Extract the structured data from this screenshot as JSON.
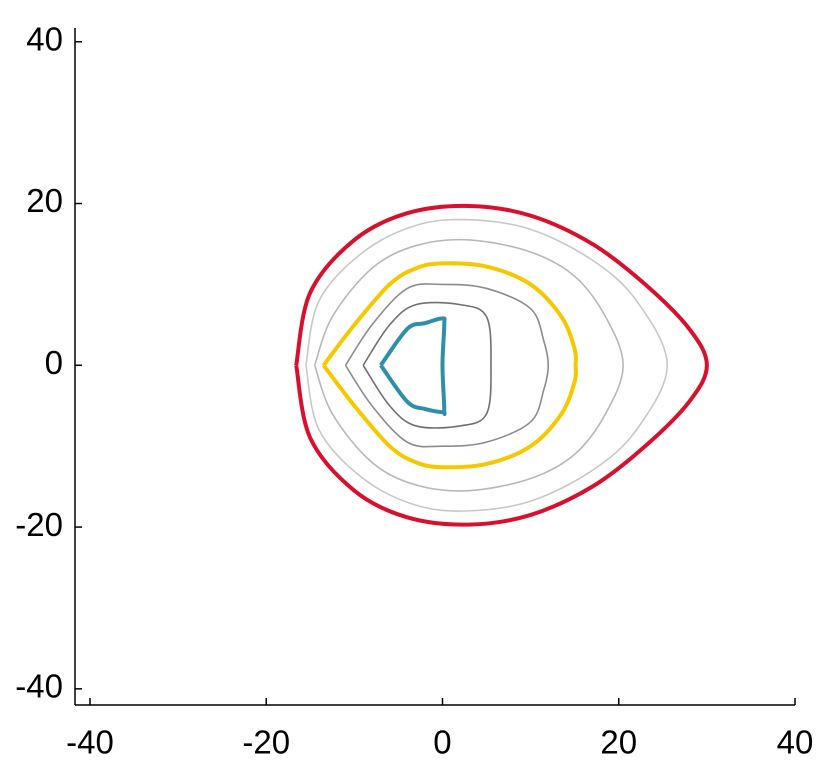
{
  "chart_data": {
    "type": "contour",
    "xlim": [
      -41.7,
      40
    ],
    "ylim": [
      -42,
      41.7
    ],
    "xticks": [
      -40,
      -20,
      0,
      20,
      40
    ],
    "yticks": [
      -40,
      -20,
      0,
      20,
      40
    ],
    "series": [
      {
        "color": "#c8c8c8",
        "width": 1.6,
        "x": [
          -15.5,
          -14,
          -9,
          -3,
          3,
          10,
          17,
          22,
          25.5,
          22,
          17,
          10,
          3,
          -3,
          -9,
          -14,
          -15.5
        ],
        "y": [
          0,
          8,
          14,
          17.3,
          18,
          16.8,
          13,
          8,
          0,
          -8,
          -13,
          -16.8,
          -18,
          -17.3,
          -14,
          -8,
          0
        ]
      },
      {
        "color": "#b8b8b8",
        "width": 1.6,
        "x": [
          -14.5,
          -12.5,
          -8,
          -3,
          3,
          10,
          15,
          18.5,
          20.5,
          18.5,
          15,
          10,
          3,
          -3,
          -8,
          -12.5,
          -14.5
        ],
        "y": [
          0,
          6,
          12,
          14.8,
          15.5,
          14,
          11,
          6,
          0,
          -6,
          -11,
          -14,
          -15.5,
          -14.8,
          -12,
          -6,
          0
        ]
      },
      {
        "color": "#8c8c8c",
        "width": 1.6,
        "x": [
          -11,
          -8,
          -4,
          0,
          5,
          10,
          11.5,
          12,
          11.5,
          10,
          5,
          0,
          -4,
          -8,
          -11
        ],
        "y": [
          0,
          5,
          9.5,
          10,
          9.5,
          7,
          3,
          0,
          -3,
          -7,
          -9.5,
          -10,
          -9.5,
          -5,
          0
        ]
      },
      {
        "color": "#707070",
        "width": 1.6,
        "x": [
          -9,
          -6,
          -3,
          2,
          5,
          5.5,
          5,
          2,
          -3,
          -6,
          -9
        ],
        "y": [
          0,
          5,
          7.5,
          7.5,
          6,
          0,
          -6,
          -7.5,
          -7.5,
          -5,
          0
        ]
      },
      {
        "color": "#d7102e",
        "width": 4,
        "x": [
          -16.6,
          -15,
          -10,
          -4,
          3,
          10,
          17,
          23,
          28,
          30,
          28,
          23,
          17,
          10,
          3,
          -4,
          -10,
          -15,
          -16.6
        ],
        "y": [
          0,
          9,
          15.5,
          18.8,
          19.7,
          18.5,
          15,
          10,
          4.5,
          0,
          -4.5,
          -10,
          -15,
          -18.5,
          -19.7,
          -18.8,
          -15.5,
          -9,
          0
        ]
      },
      {
        "color": "#f5c800",
        "width": 4,
        "x": [
          -13.5,
          -10,
          -6,
          -3,
          0,
          5,
          10,
          13.5,
          15,
          15.1,
          15,
          13.5,
          10,
          5,
          0,
          -3,
          -6,
          -10,
          -13.5
        ],
        "y": [
          0,
          5,
          10,
          12,
          12.6,
          12.2,
          10,
          6,
          2,
          0,
          -2,
          -6,
          -10,
          -12.2,
          -12.6,
          -12,
          -10,
          -5,
          0
        ]
      },
      {
        "color": "#2f8fa8",
        "width": 4,
        "x": [
          -7,
          -4,
          -2,
          0,
          0.2,
          0,
          0.2,
          0,
          -2,
          -4,
          -7
        ],
        "y": [
          0,
          4.5,
          5.2,
          5.8,
          5,
          0,
          -5.5,
          -5.8,
          -5.4,
          -4.5,
          0
        ]
      }
    ]
  }
}
